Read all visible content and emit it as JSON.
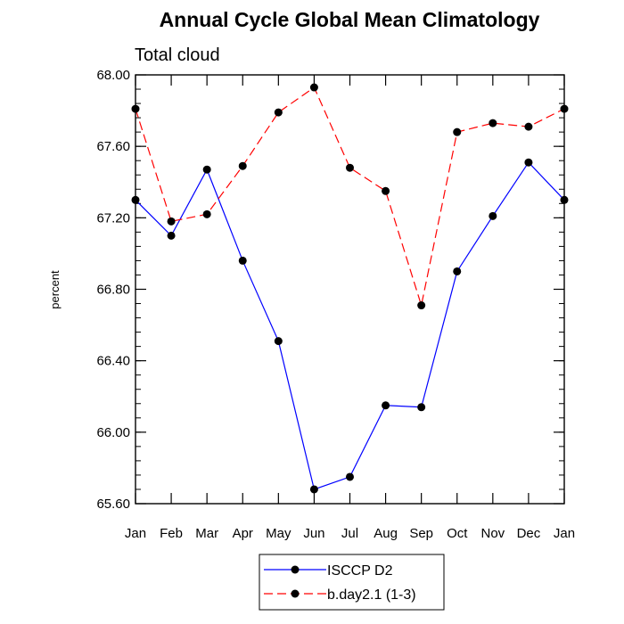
{
  "chart_data": {
    "type": "line",
    "title": "Annual Cycle Global Mean Climatology",
    "subtitle": "Total cloud",
    "xlabel": "",
    "ylabel": "percent",
    "categories": [
      "Jan",
      "Feb",
      "Mar",
      "Apr",
      "May",
      "Jun",
      "Jul",
      "Aug",
      "Sep",
      "Oct",
      "Nov",
      "Dec",
      "Jan"
    ],
    "ylim": [
      65.6,
      68.0
    ],
    "yticks": [
      65.6,
      66.0,
      66.4,
      66.8,
      67.2,
      67.6,
      68.0
    ],
    "ytick_labels": [
      "65.60",
      "66.00",
      "66.40",
      "66.80",
      "67.20",
      "67.60",
      "68.00"
    ],
    "yminor_step": 0.08,
    "grid": false,
    "legend_position": "bottom-center",
    "series": [
      {
        "name": "ISCCP D2",
        "color": "#0000ff",
        "dash": "solid",
        "values": [
          67.3,
          67.1,
          67.47,
          66.96,
          66.51,
          65.68,
          65.75,
          66.15,
          66.14,
          66.9,
          67.21,
          67.51,
          67.3
        ]
      },
      {
        "name": "b.day2.1 (1-3)",
        "color": "#ff0000",
        "dash": "dashed",
        "values": [
          67.81,
          67.18,
          67.22,
          67.49,
          67.79,
          67.93,
          67.48,
          67.35,
          66.71,
          67.68,
          67.73,
          67.71,
          67.81
        ]
      }
    ]
  }
}
